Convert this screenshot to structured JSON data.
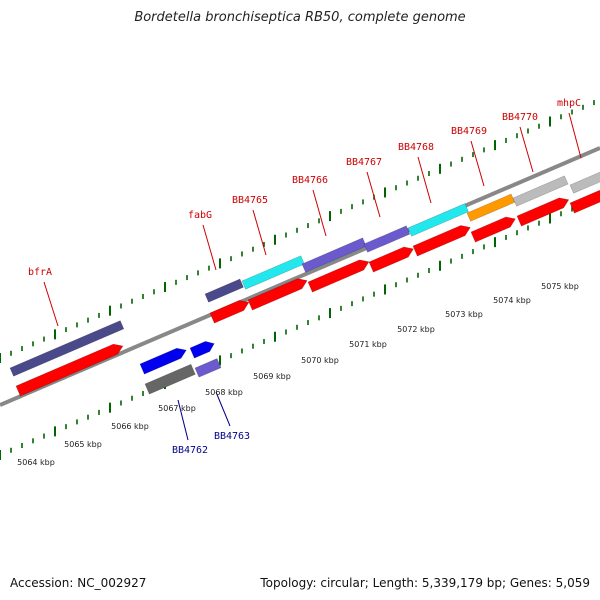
{
  "header": {
    "title": "Bordetella bronchiseptica RB50, complete genome"
  },
  "footer": {
    "accession": "Accession: NC_002927",
    "summary": "Topology: circular; Length: 5,339,179 bp; Genes: 5,059"
  },
  "colors": {
    "label_upper": "#cc0000",
    "label_lower": "#00008b",
    "backbone": "#888888",
    "tick": "#006400",
    "cds_red": "#ff0000",
    "navy": "#4a4a8a",
    "cyan": "#22e8ee",
    "slate": "#6a5acd",
    "blue": "#0000ee",
    "orange": "#ff9900",
    "gray": "#bbbbbb",
    "darkgray": "#666666"
  },
  "upper_genes": [
    {
      "name": "bfrA",
      "color": "navy"
    },
    {
      "name": "fabG",
      "color": "navy"
    },
    {
      "name": "BB4765",
      "color": "cyan"
    },
    {
      "name": "BB4766",
      "color": "slate"
    },
    {
      "name": "BB4767",
      "color": "slate"
    },
    {
      "name": "BB4768",
      "color": "cyan"
    },
    {
      "name": "BB4769",
      "color": "orange"
    },
    {
      "name": "BB4770",
      "color": "gray"
    },
    {
      "name": "mhpC",
      "color": "gray"
    }
  ],
  "lower_genes": [
    {
      "name": "BB4762",
      "color": "blue"
    },
    {
      "name": "BB4763",
      "color": "blue"
    }
  ],
  "scale_labels": [
    "5064 kbp",
    "5065 kbp",
    "5066 kbp",
    "5067 kbp",
    "5068 kbp",
    "5069 kbp",
    "5070 kbp",
    "5071 kbp",
    "5072 kbp",
    "5073 kbp",
    "5074 kbp",
    "5075 kbp"
  ]
}
